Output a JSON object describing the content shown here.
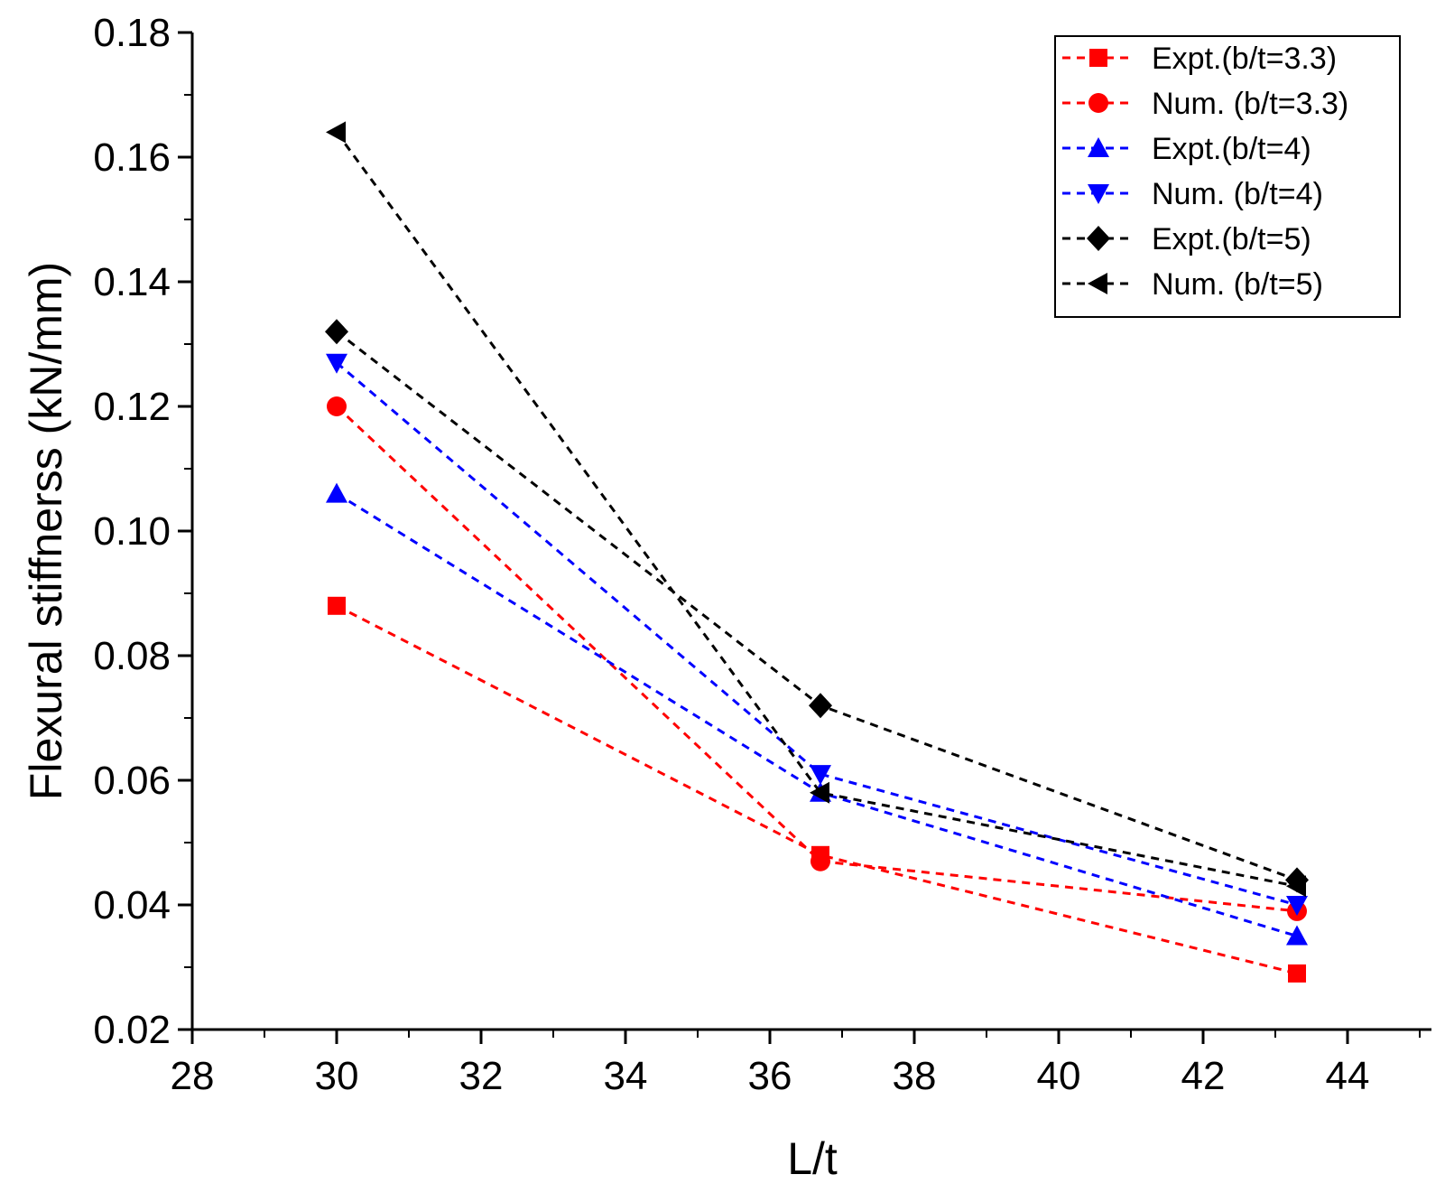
{
  "chart_data": {
    "type": "line",
    "title": "",
    "xlabel": "L/t",
    "ylabel": "Flexural stiffnerss (kN/mm)",
    "xlim": [
      28,
      45
    ],
    "ylim": [
      0.02,
      0.18
    ],
    "xticks": [
      "28",
      "30",
      "32",
      "34",
      "36",
      "38",
      "40",
      "42",
      "44"
    ],
    "yticks": [
      "0.02",
      "0.04",
      "0.06",
      "0.08",
      "0.10",
      "0.12",
      "0.14",
      "0.16",
      "0.18"
    ],
    "grid": false,
    "legend_position": "top-right",
    "x": [
      30,
      36.7,
      43.3
    ],
    "series": [
      {
        "name": "Expt.(b/t=3.3)",
        "marker": "square",
        "color": "#ff0000",
        "values": [
          0.088,
          0.048,
          0.029
        ]
      },
      {
        "name": "Num. (b/t=3.3)",
        "marker": "circle",
        "color": "#ff0000",
        "values": [
          0.12,
          0.047,
          0.039
        ]
      },
      {
        "name": "Expt.(b/t=4)",
        "marker": "triangle-up",
        "color": "#0000ff",
        "values": [
          0.106,
          0.058,
          0.035
        ]
      },
      {
        "name": "Num. (b/t=4)",
        "marker": "triangle-down",
        "color": "#0000ff",
        "values": [
          0.127,
          0.061,
          0.04
        ]
      },
      {
        "name": "Expt.(b/t=5)",
        "marker": "diamond",
        "color": "#000000",
        "values": [
          0.132,
          0.072,
          0.044
        ]
      },
      {
        "name": "Num. (b/t=5)",
        "marker": "triangle-left",
        "color": "#000000",
        "values": [
          0.164,
          0.058,
          0.043
        ]
      }
    ]
  }
}
